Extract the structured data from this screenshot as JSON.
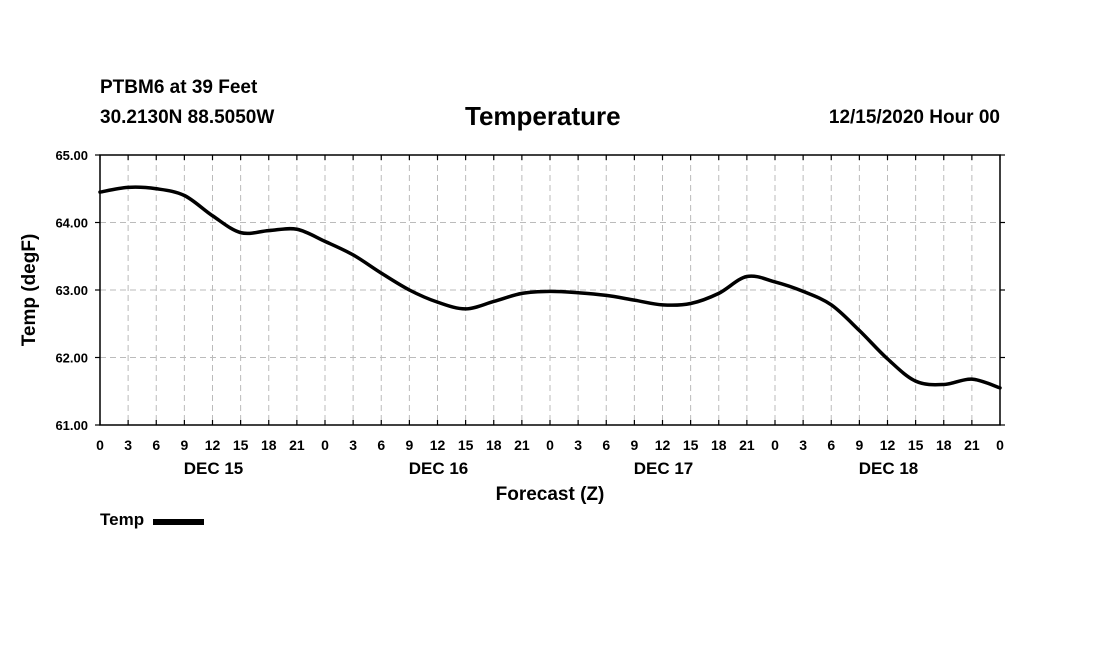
{
  "header": {
    "station": "PTBM6 at 39 Feet",
    "coords": "30.2130N 88.5050W",
    "title": "Temperature",
    "issued": "12/15/2020 Hour 00"
  },
  "chart_data": {
    "type": "line",
    "title": "Temperature",
    "xlabel": "Forecast (Z)",
    "ylabel": "Temp (degF)",
    "ylim": [
      61,
      65
    ],
    "yticks": [
      "61.00",
      "62.00",
      "63.00",
      "64.00",
      "65.00"
    ],
    "xlim": [
      0,
      96
    ],
    "x_tick_labels": [
      "0",
      "3",
      "6",
      "9",
      "12",
      "15",
      "18",
      "21",
      "0",
      "3",
      "6",
      "9",
      "12",
      "15",
      "18",
      "21",
      "0",
      "3",
      "6",
      "9",
      "12",
      "15",
      "18",
      "21",
      "0",
      "3",
      "6",
      "9",
      "12",
      "15",
      "18",
      "21",
      "0"
    ],
    "day_labels": [
      {
        "label": "DEC 15",
        "hour": 12
      },
      {
        "label": "DEC 16",
        "hour": 36
      },
      {
        "label": "DEC 17",
        "hour": 60
      },
      {
        "label": "DEC 18",
        "hour": 84
      }
    ],
    "grid": true,
    "legend": "bottom-left",
    "series": [
      {
        "name": "Temp",
        "color": "#000000",
        "x": [
          0,
          3,
          6,
          9,
          12,
          15,
          18,
          21,
          24,
          27,
          30,
          33,
          36,
          39,
          42,
          45,
          48,
          51,
          54,
          57,
          60,
          63,
          66,
          69,
          72,
          75,
          78,
          81,
          84,
          87,
          90,
          93,
          96
        ],
        "values": [
          64.45,
          64.52,
          64.5,
          64.4,
          64.1,
          63.85,
          63.88,
          63.9,
          63.72,
          63.52,
          63.25,
          63.0,
          62.82,
          62.72,
          62.83,
          62.95,
          62.98,
          62.96,
          62.92,
          62.85,
          62.78,
          62.8,
          62.95,
          63.2,
          63.12,
          62.98,
          62.78,
          62.4,
          61.98,
          61.65,
          61.6,
          61.68,
          61.55
        ]
      }
    ]
  },
  "legend": {
    "label": "Temp"
  }
}
